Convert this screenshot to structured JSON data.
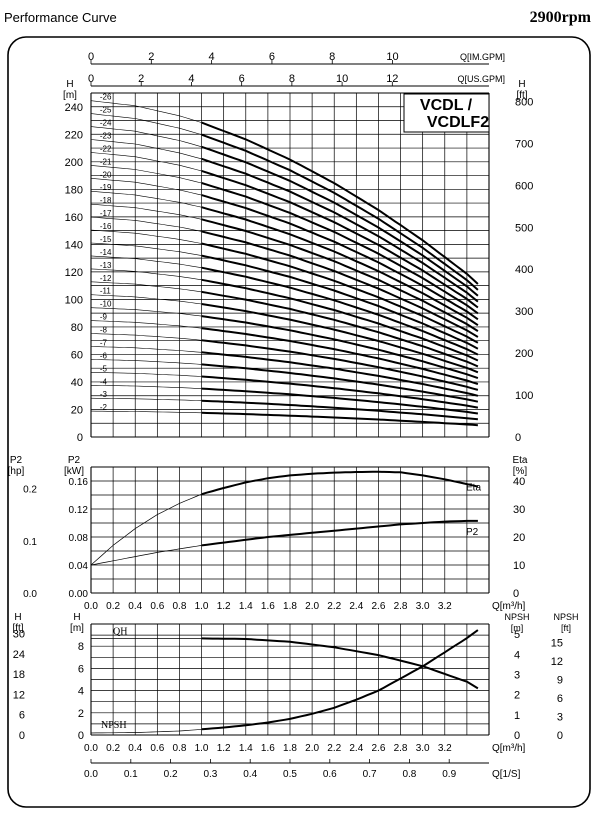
{
  "header": {
    "title": "Performance Curve",
    "speed": "2900rpm"
  },
  "chart_data": [
    {
      "type": "line",
      "id": "head",
      "model_label": [
        "VCDL /",
        "VCDLF2"
      ],
      "xlim": [
        0,
        3.6
      ],
      "ylim": [
        0,
        250
      ],
      "x_ticks": [
        0.0,
        0.2,
        0.4,
        0.6,
        0.8,
        1.0,
        1.2,
        1.4,
        1.6,
        1.8,
        2.0,
        2.2,
        2.4,
        2.6,
        2.8,
        3.0,
        3.2
      ],
      "x_ticklabels": [
        "0.0",
        "0.2",
        "0.4",
        "0.6",
        "0.8",
        "1.0",
        "1.2",
        "1.4",
        "1.6",
        "1.8",
        "2.0",
        "2.2",
        "2.4",
        "2.6",
        "2.8",
        "3.0",
        "3.2"
      ],
      "xlabel": "Q[m³/h]",
      "left_axis": {
        "label": "H",
        "unit": "[m]",
        "ticks": [
          0,
          20,
          40,
          60,
          80,
          100,
          120,
          140,
          160,
          180,
          200,
          220,
          240
        ]
      },
      "right_axis": {
        "label": "H",
        "unit": "[ft]",
        "ticks": [
          0,
          100,
          200,
          300,
          400,
          500,
          600,
          700,
          800
        ]
      },
      "top_axes": [
        {
          "label": "Q[IM.GPM]",
          "ticks": [
            0,
            2,
            4,
            6,
            8,
            10
          ],
          "ticklabels": [
            "0",
            "2",
            "4",
            "6",
            "8",
            "10"
          ]
        },
        {
          "label": "Q[US.GPM]",
          "ticks": [
            0,
            2,
            4,
            6,
            8,
            10,
            12
          ],
          "ticklabels": [
            "0",
            "2",
            "4",
            "6",
            "8",
            "10",
            "12"
          ]
        }
      ],
      "grid": true,
      "operating_range": [
        1.0,
        3.5
      ],
      "stage_head_m": 9.4,
      "stage_curve": {
        "q": [
          0,
          0.4,
          0.8,
          1.0,
          1.4,
          1.8,
          2.2,
          2.6,
          3.0,
          3.4,
          3.5
        ],
        "h": [
          1.0,
          0.985,
          0.955,
          0.935,
          0.885,
          0.825,
          0.755,
          0.675,
          0.585,
          0.485,
          0.455
        ]
      },
      "series": [
        {
          "label": "-2",
          "stages": 2
        },
        {
          "label": "-3",
          "stages": 3
        },
        {
          "label": "-4",
          "stages": 4
        },
        {
          "label": "-5",
          "stages": 5
        },
        {
          "label": "-6",
          "stages": 6
        },
        {
          "label": "-7",
          "stages": 7
        },
        {
          "label": "-8",
          "stages": 8
        },
        {
          "label": "-9",
          "stages": 9
        },
        {
          "label": "-10",
          "stages": 10
        },
        {
          "label": "-11",
          "stages": 11
        },
        {
          "label": "-12",
          "stages": 12
        },
        {
          "label": "-13",
          "stages": 13
        },
        {
          "label": "-14",
          "stages": 14
        },
        {
          "label": "-15",
          "stages": 15
        },
        {
          "label": "-16",
          "stages": 16
        },
        {
          "label": "-17",
          "stages": 17
        },
        {
          "label": "-18",
          "stages": 18
        },
        {
          "label": "-19",
          "stages": 19
        },
        {
          "label": "-20",
          "stages": 20
        },
        {
          "label": "-21",
          "stages": 21
        },
        {
          "label": "-22",
          "stages": 22
        },
        {
          "label": "-23",
          "stages": 23
        },
        {
          "label": "-24",
          "stages": 24
        },
        {
          "label": "-25",
          "stages": 25
        },
        {
          "label": "-26",
          "stages": 26
        }
      ]
    },
    {
      "type": "line",
      "id": "power",
      "xlim": [
        0,
        3.6
      ],
      "x_ticks": [
        0.0,
        0.2,
        0.4,
        0.6,
        0.8,
        1.0,
        1.2,
        1.4,
        1.6,
        1.8,
        2.0,
        2.2,
        2.4,
        2.6,
        2.8,
        3.0,
        3.2
      ],
      "x_ticklabels": [
        "0.0",
        "0.2",
        "0.4",
        "0.6",
        "0.8",
        "1.0",
        "1.2",
        "1.4",
        "1.6",
        "1.8",
        "2.0",
        "2.2",
        "2.4",
        "2.6",
        "2.8",
        "3.0",
        "3.2"
      ],
      "xlabel": "Q[m³/h]",
      "axis_hp": {
        "label": "P2",
        "unit": "[hp]",
        "ticks": [
          0.0,
          0.1,
          0.2
        ],
        "ticklabels": [
          "0.0",
          "0.1",
          "0.2"
        ]
      },
      "axis_kw": {
        "label": "P2",
        "unit": "[kW]",
        "ylim": [
          0,
          0.18
        ],
        "ticks": [
          0.0,
          0.04,
          0.08,
          0.12,
          0.16
        ],
        "ticklabels": [
          "0.00",
          "0.04",
          "0.08",
          "0.12",
          "0.16"
        ]
      },
      "axis_eta": {
        "label": "Eta",
        "unit": "[%]",
        "ylim": [
          0,
          45
        ],
        "ticks": [
          0,
          10,
          20,
          30,
          40
        ],
        "ticklabels": [
          "0",
          "10",
          "20",
          "30",
          "40"
        ]
      },
      "eta_curve": {
        "label": "Eta",
        "x": [
          0,
          0.2,
          0.4,
          0.6,
          0.8,
          1.0,
          1.2,
          1.4,
          1.6,
          1.8,
          2.0,
          2.2,
          2.4,
          2.6,
          2.8,
          3.0,
          3.2,
          3.4,
          3.5
        ],
        "y": [
          10,
          17,
          23,
          28,
          32,
          35.3,
          37.5,
          39.5,
          41,
          42,
          42.6,
          43,
          43.2,
          43.3,
          43.1,
          42,
          40.6,
          38.9,
          38
        ]
      },
      "p2_curve": {
        "label": "P2",
        "unit": "kW",
        "x": [
          0,
          0.2,
          0.4,
          0.6,
          0.8,
          1.0,
          1.2,
          1.4,
          1.6,
          1.8,
          2.0,
          2.2,
          2.4,
          2.6,
          2.8,
          3.0,
          3.2,
          3.4,
          3.5
        ],
        "y": [
          0.04,
          0.046,
          0.052,
          0.058,
          0.063,
          0.068,
          0.072,
          0.076,
          0.08,
          0.083,
          0.086,
          0.089,
          0.092,
          0.095,
          0.098,
          0.1,
          0.102,
          0.103,
          0.103
        ]
      },
      "grid": true
    },
    {
      "type": "line",
      "id": "npsh",
      "xlim": [
        0,
        3.6
      ],
      "x_ticks": [
        0.0,
        0.2,
        0.4,
        0.6,
        0.8,
        1.0,
        1.2,
        1.4,
        1.6,
        1.8,
        2.0,
        2.2,
        2.4,
        2.6,
        2.8,
        3.0,
        3.2
      ],
      "x_ticklabels": [
        "0.0",
        "0.2",
        "0.4",
        "0.6",
        "0.8",
        "1.0",
        "1.2",
        "1.4",
        "1.6",
        "1.8",
        "2.0",
        "2.2",
        "2.4",
        "2.6",
        "2.8",
        "3.0",
        "3.2"
      ],
      "xlabel": "Q[m³/h]",
      "axis_ft": {
        "label": "H",
        "unit": "[ft]",
        "ticks": [
          0,
          6,
          12,
          18,
          24,
          30
        ],
        "ticklabels": [
          "0",
          "6",
          "12",
          "18",
          "24",
          "30"
        ]
      },
      "axis_m": {
        "label": "H",
        "unit": "[m]",
        "ylim": [
          0,
          10
        ],
        "ticks": [
          0,
          2,
          4,
          6,
          8
        ],
        "ticklabels": [
          "0",
          "2",
          "4",
          "6",
          "8"
        ]
      },
      "axis_npsh_m": {
        "label": "NPSH",
        "unit": "[m]",
        "ylim": [
          0,
          5.5
        ],
        "ticks": [
          0,
          1,
          2,
          3,
          4,
          5
        ],
        "ticklabels": [
          "0",
          "1",
          "2",
          "3",
          "4",
          "5"
        ]
      },
      "axis_npsh_ft": {
        "label": "NPSH",
        "unit": "[ft]",
        "ticks": [
          0,
          3,
          6,
          9,
          12,
          15
        ],
        "ticklabels": [
          "0",
          "3",
          "6",
          "9",
          "12",
          "15"
        ]
      },
      "qh_curve": {
        "label": "QH",
        "x": [
          0,
          0.4,
          0.8,
          1.0,
          1.4,
          1.8,
          2.2,
          2.6,
          3.0,
          3.4,
          3.5
        ],
        "y": [
          8.7,
          8.7,
          8.7,
          8.7,
          8.65,
          8.4,
          7.9,
          7.2,
          6.2,
          4.8,
          4.2
        ]
      },
      "npsh_curve": {
        "label": "NPSH",
        "x": [
          0,
          0.4,
          0.8,
          1.0,
          1.2,
          1.4,
          1.6,
          1.8,
          2.0,
          2.2,
          2.4,
          2.6,
          2.8,
          3.0,
          3.2,
          3.4,
          3.5
        ],
        "y": [
          0.1,
          0.12,
          0.2,
          0.28,
          0.37,
          0.48,
          0.62,
          0.8,
          1.05,
          1.35,
          1.75,
          2.2,
          2.8,
          3.4,
          4.1,
          4.8,
          5.2
        ]
      },
      "grid": true
    },
    {
      "type": "axis",
      "id": "flow-ls",
      "xlim": [
        0,
        1.0
      ],
      "ticks": [
        0.0,
        0.1,
        0.2,
        0.3,
        0.4,
        0.5,
        0.6,
        0.7,
        0.8,
        0.9
      ],
      "ticklabels": [
        "0.0",
        "0.1",
        "0.2",
        "0.3",
        "0.4",
        "0.5",
        "0.6",
        "0.7",
        "0.8",
        "0.9"
      ],
      "xlabel": "Q[1/S]"
    }
  ]
}
